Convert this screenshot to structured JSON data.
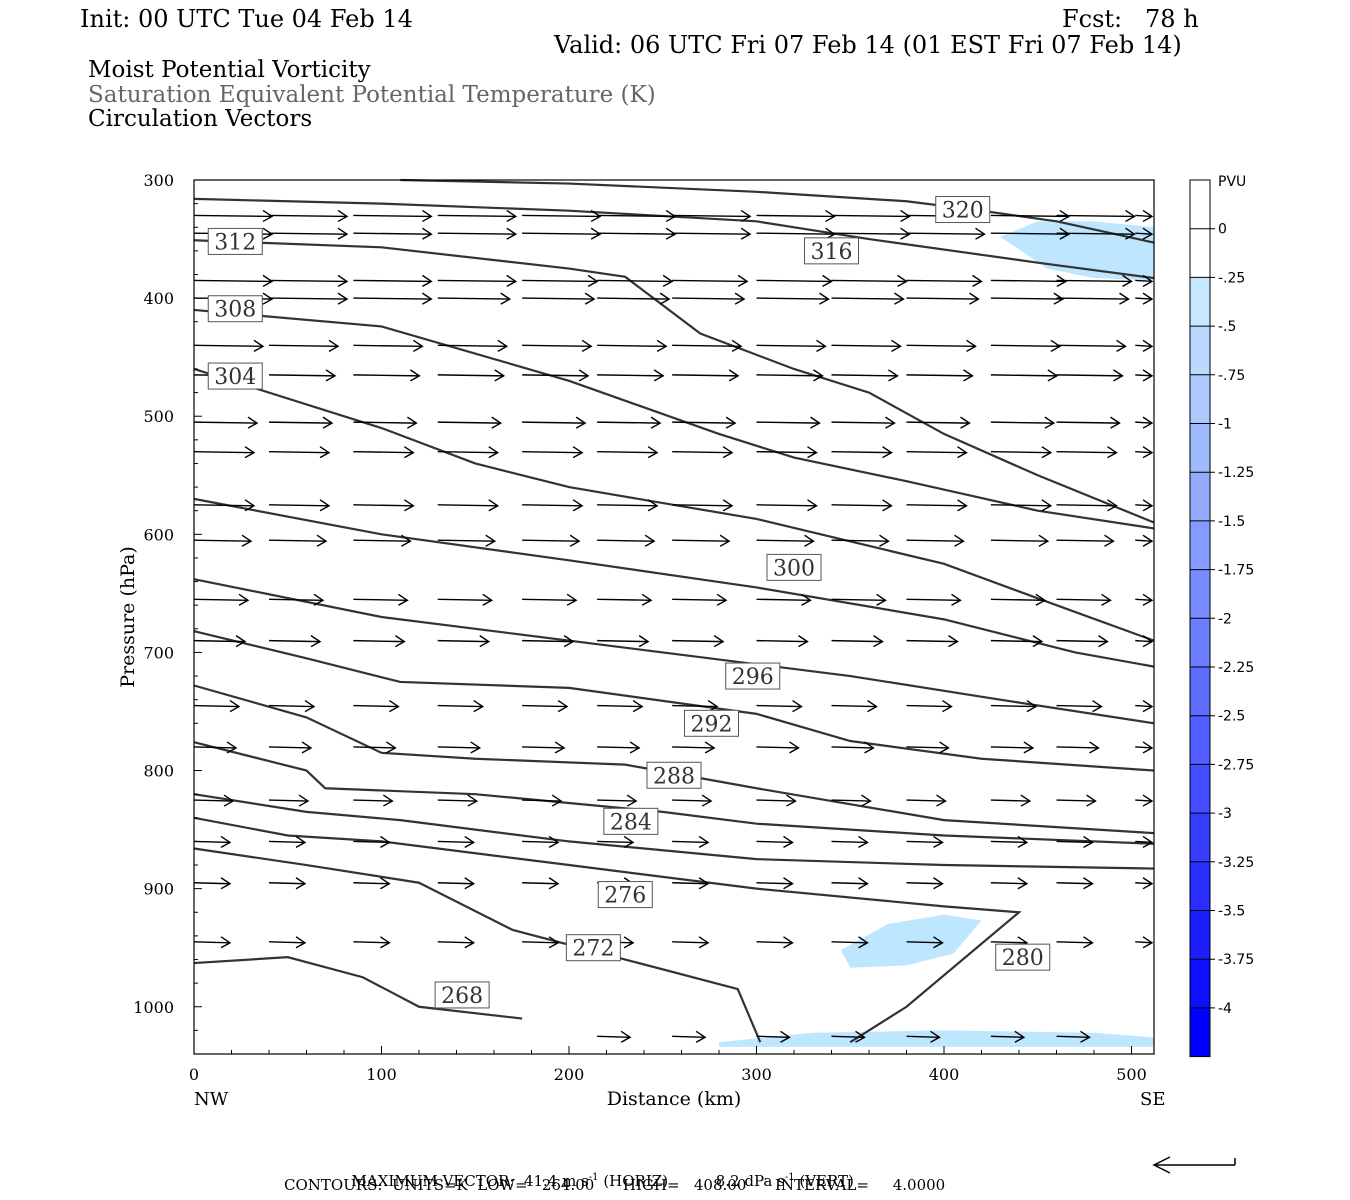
{
  "header": {
    "init": "Init: 00 UTC Tue 04 Feb 14",
    "fcst": "Fcst:   78 h",
    "valid": "Valid: 06 UTC Fri 07 Feb 14 (01 EST Fri 07 Feb 14)",
    "field1": "Moist Potential Vorticity",
    "field2": "Saturation Equivalent Potential Temperature (K)",
    "field3": "Circulation Vectors"
  },
  "chart_data": {
    "type": "cross-section",
    "xlabel": "Distance (km)",
    "ylabel": "Pressure (hPa)",
    "xlim": [
      0,
      512
    ],
    "ylim": [
      300,
      1040
    ],
    "y_scale": "linear, inverted",
    "x_ticks": [
      0,
      100,
      200,
      300,
      400,
      500
    ],
    "y_ticks": [
      300,
      400,
      500,
      600,
      700,
      800,
      900,
      1000
    ],
    "endpoints": {
      "left": "NW",
      "right": "SE"
    },
    "theta_contours": [
      {
        "level": 320,
        "label": "320",
        "label_pos": [
          410,
          325
        ],
        "points": [
          [
            110,
            300
          ],
          [
            200,
            303
          ],
          [
            300,
            310
          ],
          [
            380,
            318
          ],
          [
            420,
            326
          ],
          [
            460,
            335
          ],
          [
            512,
            353
          ]
        ]
      },
      {
        "level": 316,
        "label": "316",
        "label_pos": [
          340,
          360
        ],
        "points": [
          [
            0,
            316
          ],
          [
            100,
            320
          ],
          [
            200,
            326
          ],
          [
            300,
            335
          ],
          [
            360,
            350
          ],
          [
            450,
            370
          ],
          [
            512,
            383
          ]
        ]
      },
      {
        "level": 312,
        "label": "312",
        "label_pos": [
          22,
          352
        ],
        "points": [
          [
            0,
            351
          ],
          [
            100,
            357
          ],
          [
            200,
            375
          ],
          [
            230,
            382
          ],
          [
            270,
            430
          ],
          [
            320,
            460
          ],
          [
            360,
            480
          ],
          [
            400,
            515
          ],
          [
            450,
            550
          ],
          [
            512,
            590
          ]
        ]
      },
      {
        "level": 308,
        "label": "308",
        "label_pos": [
          22,
          409
        ],
        "points": [
          [
            0,
            410
          ],
          [
            100,
            424
          ],
          [
            200,
            470
          ],
          [
            280,
            515
          ],
          [
            320,
            535
          ],
          [
            380,
            555
          ],
          [
            450,
            580
          ],
          [
            512,
            595
          ]
        ]
      },
      {
        "level": 304,
        "label": "304",
        "label_pos": [
          22,
          466
        ],
        "points": [
          [
            0,
            460
          ],
          [
            100,
            510
          ],
          [
            150,
            540
          ],
          [
            200,
            560
          ],
          [
            300,
            587
          ],
          [
            400,
            625
          ],
          [
            460,
            660
          ],
          [
            512,
            690
          ]
        ]
      },
      {
        "level": 300,
        "label": "300",
        "label_pos": [
          320,
          628
        ],
        "points": [
          [
            0,
            570
          ],
          [
            100,
            600
          ],
          [
            200,
            622
          ],
          [
            300,
            645
          ],
          [
            400,
            672
          ],
          [
            470,
            700
          ],
          [
            512,
            712
          ]
        ]
      },
      {
        "level": 296,
        "label": "296",
        "label_pos": [
          298,
          720
        ],
        "points": [
          [
            0,
            638
          ],
          [
            100,
            670
          ],
          [
            150,
            680
          ],
          [
            250,
            700
          ],
          [
            350,
            720
          ],
          [
            430,
            740
          ],
          [
            512,
            760
          ]
        ]
      },
      {
        "level": 292,
        "label": "292",
        "label_pos": [
          276,
          760
        ],
        "points": [
          [
            0,
            682
          ],
          [
            60,
            705
          ],
          [
            110,
            725
          ],
          [
            200,
            730
          ],
          [
            300,
            752
          ],
          [
            350,
            775
          ],
          [
            420,
            790
          ],
          [
            512,
            800
          ]
        ]
      },
      {
        "level": 288,
        "label": "288",
        "label_pos": [
          256,
          804
        ],
        "points": [
          [
            0,
            728
          ],
          [
            60,
            755
          ],
          [
            100,
            785
          ],
          [
            150,
            790
          ],
          [
            230,
            795
          ],
          [
            300,
            815
          ],
          [
            400,
            842
          ],
          [
            512,
            853
          ]
        ]
      },
      {
        "level": 284,
        "label": "284",
        "label_pos": [
          233,
          843
        ],
        "points": [
          [
            0,
            776
          ],
          [
            60,
            800
          ],
          [
            70,
            815
          ],
          [
            150,
            820
          ],
          [
            250,
            835
          ],
          [
            300,
            845
          ],
          [
            400,
            855
          ],
          [
            512,
            862
          ]
        ]
      },
      {
        "level": 280,
        "label": "280",
        "label_pos": [
          442,
          958
        ],
        "points": [
          [
            0,
            820
          ],
          [
            60,
            835
          ],
          [
            110,
            842
          ],
          [
            200,
            860
          ],
          [
            300,
            875
          ],
          [
            400,
            880
          ],
          [
            512,
            883
          ]
        ]
      },
      {
        "level": 276,
        "label": "276",
        "label_pos": [
          230,
          905
        ],
        "points": [
          [
            0,
            840
          ],
          [
            50,
            855
          ],
          [
            100,
            860
          ],
          [
            200,
            880
          ],
          [
            300,
            900
          ],
          [
            400,
            915
          ],
          [
            440,
            920
          ],
          [
            380,
            1000
          ],
          [
            350,
            1030
          ]
        ]
      },
      {
        "level": 272,
        "label": "272",
        "label_pos": [
          213,
          950
        ],
        "points": [
          [
            0,
            866
          ],
          [
            60,
            880
          ],
          [
            120,
            895
          ],
          [
            170,
            935
          ],
          [
            230,
            960
          ],
          [
            290,
            985
          ],
          [
            302,
            1030
          ]
        ]
      },
      {
        "level": 268,
        "label": "268",
        "label_pos": [
          143,
          990
        ],
        "points": [
          [
            0,
            963
          ],
          [
            50,
            958
          ],
          [
            90,
            975
          ],
          [
            120,
            1000
          ],
          [
            175,
            1010
          ]
        ]
      }
    ],
    "mpv_colorbar": {
      "units": "PVU",
      "labels": [
        "0",
        "-.25",
        "-.5",
        "-.75",
        "-1",
        "-1.25",
        "-1.5",
        "-1.75",
        "-2",
        "-2.25",
        "-2.5",
        "-2.75",
        "-3",
        "-3.25",
        "-3.5",
        "-3.75",
        "-4"
      ]
    },
    "mpv_negative_regions": [
      {
        "value": "-.25 to 0",
        "points": [
          [
            430,
            348
          ],
          [
            450,
            335
          ],
          [
            480,
            335
          ],
          [
            512,
            340
          ],
          [
            512,
            385
          ],
          [
            480,
            383
          ],
          [
            455,
            375
          ]
        ]
      },
      {
        "value": "-.25 to 0",
        "points": [
          [
            345,
            952
          ],
          [
            370,
            930
          ],
          [
            400,
            922
          ],
          [
            420,
            927
          ],
          [
            405,
            955
          ],
          [
            380,
            965
          ],
          [
            350,
            967
          ]
        ]
      },
      {
        "value": "-.25 to 0",
        "points": [
          [
            280,
            1030
          ],
          [
            330,
            1022
          ],
          [
            400,
            1020
          ],
          [
            480,
            1022
          ],
          [
            512,
            1026
          ],
          [
            512,
            1034
          ],
          [
            280,
            1034
          ]
        ]
      }
    ],
    "vectors": [
      {
        "p": 330,
        "x": [
          0,
          40,
          85,
          130,
          175,
          215,
          255,
          300,
          340,
          380,
          425,
          460,
          502
        ]
      },
      {
        "p": 345,
        "x": [
          0,
          40,
          85,
          130,
          175,
          215,
          255,
          300,
          340,
          380,
          425,
          460,
          502
        ]
      },
      {
        "p": 385,
        "x": [
          0,
          40,
          85,
          130,
          175,
          215,
          255,
          300,
          340,
          380,
          425,
          460,
          502
        ]
      },
      {
        "p": 400,
        "x": [
          0,
          40,
          85,
          130,
          175,
          215,
          255,
          300,
          340,
          380,
          425,
          460,
          502
        ]
      },
      {
        "p": 440,
        "x": [
          0,
          40,
          85,
          130,
          175,
          215,
          255,
          300,
          340,
          380,
          425,
          460,
          502
        ]
      },
      {
        "p": 465,
        "x": [
          0,
          40,
          85,
          130,
          175,
          215,
          255,
          300,
          340,
          380,
          425,
          460,
          502
        ]
      },
      {
        "p": 505,
        "x": [
          0,
          40,
          85,
          130,
          175,
          215,
          255,
          300,
          340,
          380,
          425,
          460,
          502
        ]
      },
      {
        "p": 530,
        "x": [
          0,
          40,
          85,
          130,
          175,
          215,
          255,
          300,
          340,
          380,
          425,
          460,
          502
        ]
      },
      {
        "p": 575,
        "x": [
          0,
          40,
          85,
          130,
          175,
          215,
          255,
          300,
          340,
          380,
          425,
          460,
          502
        ]
      },
      {
        "p": 605,
        "x": [
          0,
          40,
          85,
          130,
          175,
          215,
          255,
          300,
          340,
          380,
          425,
          460,
          502
        ]
      },
      {
        "p": 655,
        "x": [
          0,
          40,
          85,
          130,
          175,
          215,
          255,
          300,
          340,
          380,
          425,
          460,
          502
        ]
      },
      {
        "p": 690,
        "x": [
          0,
          40,
          85,
          130,
          175,
          215,
          255,
          300,
          340,
          380,
          425,
          460,
          502
        ]
      },
      {
        "p": 745,
        "x": [
          0,
          40,
          85,
          130,
          175,
          215,
          255,
          300,
          340,
          380,
          425,
          460,
          502
        ]
      },
      {
        "p": 780,
        "x": [
          0,
          40,
          85,
          130,
          175,
          215,
          255,
          300,
          340,
          380,
          425,
          460,
          502
        ]
      },
      {
        "p": 825,
        "x": [
          0,
          40,
          85,
          130,
          175,
          215,
          255,
          300,
          340,
          380,
          425,
          460,
          502
        ]
      },
      {
        "p": 860,
        "x": [
          0,
          40,
          85,
          130,
          175,
          215,
          255,
          300,
          340,
          380,
          425,
          460,
          502
        ]
      },
      {
        "p": 895,
        "x": [
          0,
          40,
          85,
          130,
          175,
          215,
          255,
          300,
          340,
          380,
          425,
          460,
          502
        ]
      },
      {
        "p": 945,
        "x": [
          0,
          40,
          85,
          130,
          175,
          215,
          255,
          300,
          340,
          380,
          425,
          460,
          502
        ]
      },
      {
        "p": 1025,
        "x": [
          215,
          255,
          300,
          340,
          380,
          425,
          460
        ]
      }
    ],
    "vector_speeds": [
      [
        1.0,
        1.0,
        1.0,
        1.0,
        1.0,
        1.0,
        1.0,
        1.0,
        1.0,
        1.0,
        1.0,
        1.0,
        1.0
      ],
      [
        1.0,
        1.0,
        1.0,
        1.0,
        1.0,
        1.0,
        1.0,
        1.0,
        1.0,
        1.0,
        1.0,
        1.0,
        1.0
      ],
      [
        1.0,
        1.0,
        1.0,
        1.0,
        0.95,
        0.95,
        0.95,
        0.95,
        0.95,
        0.95,
        0.95,
        0.95,
        0.95
      ],
      [
        1.0,
        1.0,
        1.0,
        0.9,
        0.9,
        0.9,
        0.9,
        0.9,
        0.9,
        0.9,
        0.9,
        0.9,
        0.9
      ],
      [
        0.85,
        0.85,
        0.85,
        0.85,
        0.85,
        0.85,
        0.85,
        0.85,
        0.85,
        0.85,
        0.85,
        0.85,
        0.85
      ],
      [
        0.8,
        0.8,
        0.8,
        0.8,
        0.8,
        0.8,
        0.8,
        0.8,
        0.8,
        0.8,
        0.8,
        0.8,
        0.8
      ],
      [
        0.75,
        0.75,
        0.75,
        0.75,
        0.75,
        0.75,
        0.75,
        0.75,
        0.75,
        0.75,
        0.75,
        0.75,
        0.75
      ],
      [
        0.7,
        0.7,
        0.7,
        0.7,
        0.7,
        0.7,
        0.7,
        0.7,
        0.7,
        0.7,
        0.7,
        0.7,
        0.7
      ],
      [
        0.7,
        0.7,
        0.7,
        0.7,
        0.7,
        0.7,
        0.7,
        0.7,
        0.7,
        0.7,
        0.7,
        0.7,
        0.7
      ],
      [
        0.65,
        0.65,
        0.65,
        0.65,
        0.65,
        0.65,
        0.65,
        0.65,
        0.65,
        0.65,
        0.65,
        0.65,
        0.65
      ],
      [
        0.6,
        0.6,
        0.6,
        0.6,
        0.6,
        0.6,
        0.6,
        0.6,
        0.6,
        0.6,
        0.6,
        0.6,
        0.6
      ],
      [
        0.55,
        0.55,
        0.55,
        0.55,
        0.55,
        0.55,
        0.55,
        0.55,
        0.55,
        0.55,
        0.55,
        0.55,
        0.55
      ],
      [
        0.45,
        0.45,
        0.45,
        0.45,
        0.45,
        0.45,
        0.45,
        0.45,
        0.45,
        0.45,
        0.45,
        0.45,
        0.45
      ],
      [
        0.4,
        0.4,
        0.4,
        0.4,
        0.4,
        0.4,
        0.4,
        0.4,
        0.4,
        0.4,
        0.4,
        0.4,
        0.4
      ],
      [
        0.35,
        0.35,
        0.35,
        0.35,
        0.35,
        0.35,
        0.35,
        0.35,
        0.35,
        0.35,
        0.35,
        0.35,
        0.35
      ],
      [
        0.3,
        0.3,
        0.3,
        0.3,
        0.3,
        0.3,
        0.3,
        0.3,
        0.3,
        0.3,
        0.3,
        0.3,
        0.3
      ],
      [
        0.3,
        0.3,
        0.3,
        0.3,
        0.3,
        0.3,
        0.3,
        0.3,
        0.3,
        0.3,
        0.3,
        0.3,
        0.3
      ],
      [
        0.3,
        0.3,
        0.3,
        0.3,
        0.3,
        0.3,
        0.3,
        0.3,
        0.3,
        0.3,
        0.3,
        0.3,
        0.3
      ],
      [
        0.25,
        0.25,
        0.25,
        0.25,
        0.25,
        0.25,
        0.25
      ]
    ]
  },
  "footer": {
    "max_vector_label": "MAXIMUM VECTOR:",
    "max_vector_horiz": "41.4 m s",
    "max_vector_horiz_unit": "(HORIZ)",
    "max_vector_vert": "8.2 dPa s",
    "max_vector_vert_unit": "(VERT)",
    "exponent": "-1",
    "contours": "CONTOURS:  UNITS=K  LOW=   264.00      HIGH=   408.00      INTERVAL=     4.0000"
  },
  "colors": {
    "contour": "#333333",
    "vector": "#000000",
    "mpv_fill": "#bfe6ff",
    "frame": "#000000"
  }
}
